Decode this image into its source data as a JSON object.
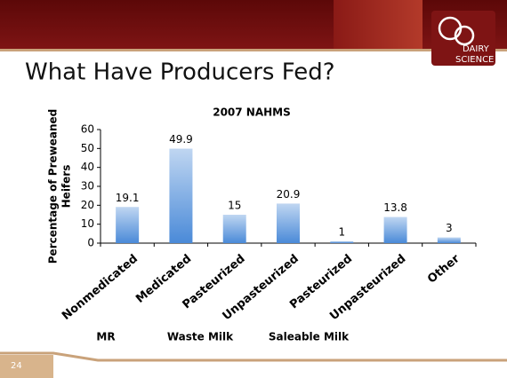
{
  "slide": {
    "title": "What Have Producers Fed?",
    "number": "24",
    "logo": [
      "DAIRY",
      "SCIENCE"
    ]
  },
  "chart_data": {
    "type": "bar",
    "title": "2007 NAHMS",
    "ylabel": [
      "Percentage of Preweaned",
      "Heifers"
    ],
    "categories": [
      "Nonmedicated",
      "Medicated",
      "Pasteurized",
      "Unpasteurized",
      "Pasteurized",
      "Unpasteurized",
      "Other"
    ],
    "values": [
      19.1,
      49.9,
      15,
      20.9,
      1,
      13.8,
      3
    ],
    "color": "#4a8ad8",
    "ylim": [
      0,
      60
    ],
    "yticks": [
      0,
      10,
      20,
      30,
      40,
      50,
      60
    ],
    "grid": false,
    "groups": [
      "MR",
      "Waste Milk",
      "Saleable Milk"
    ]
  }
}
